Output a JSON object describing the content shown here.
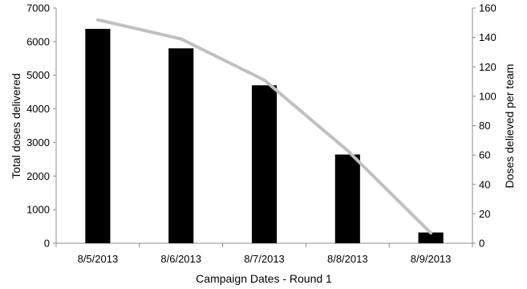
{
  "chart_data": {
    "type": "bar",
    "categories": [
      "8/5/2013",
      "8/6/2013",
      "8/7/2013",
      "8/8/2013",
      "8/9/2013"
    ],
    "xlabel": "Campaign Dates - Round 1",
    "ylabel": "Total doses delivered",
    "y2label": "Doses delieved per team",
    "ylim": [
      0,
      7000
    ],
    "y2lim": [
      0,
      160
    ],
    "yticks": [
      "0",
      "1000",
      "2000",
      "3000",
      "4000",
      "5000",
      "6000",
      "7000"
    ],
    "y2ticks": [
      "0",
      "20",
      "40",
      "60",
      "80",
      "100",
      "120",
      "140",
      "160"
    ],
    "grid": false,
    "legend": "none",
    "series": [
      {
        "type": "bar",
        "axis": "left",
        "color": "#000000",
        "values": [
          6380,
          5800,
          4700,
          2640,
          320
        ]
      },
      {
        "type": "line",
        "axis": "right",
        "color": "#c0c0c0",
        "values": [
          152,
          139,
          111,
          63,
          7
        ]
      }
    ]
  }
}
